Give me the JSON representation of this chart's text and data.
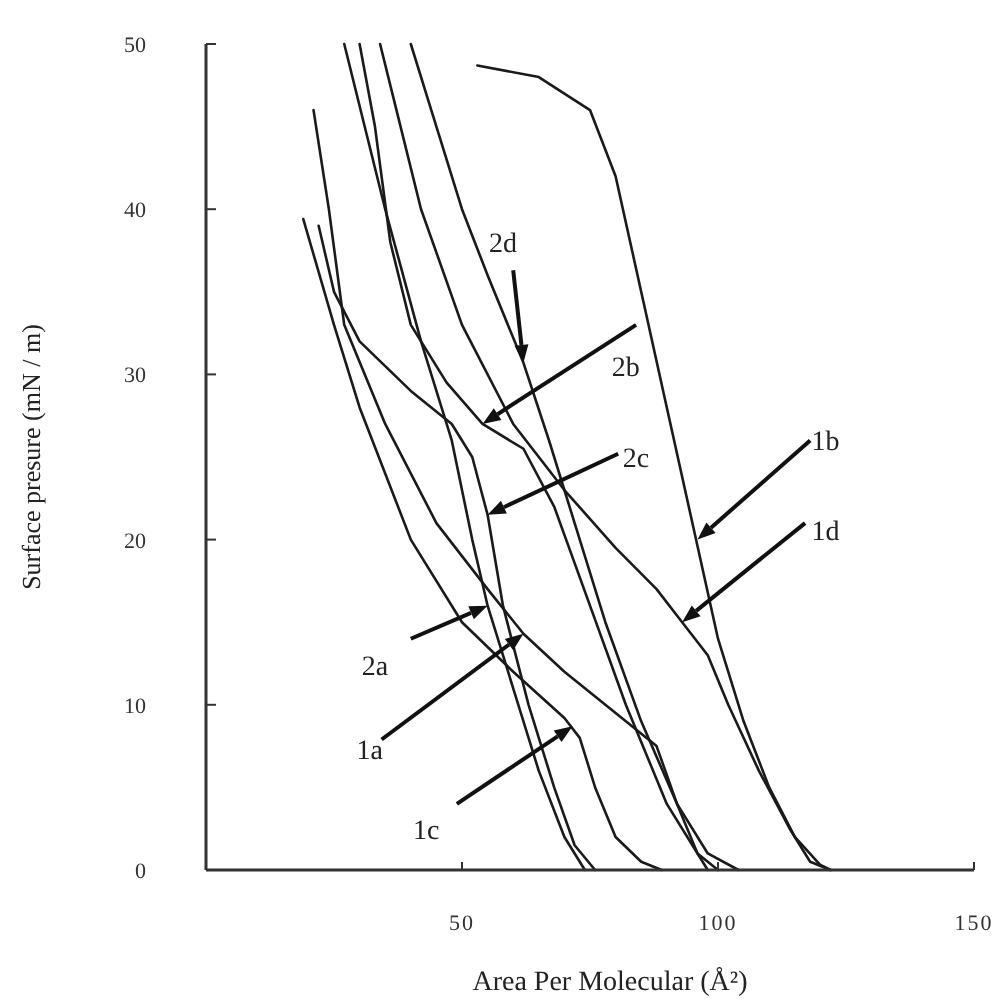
{
  "chart_data": {
    "type": "line",
    "xlabel": "Area Per Molecular (Å²)",
    "ylabel": "Surface presure (mN / m)",
    "xlim": [
      0,
      150
    ],
    "ylim": [
      0,
      50
    ],
    "xticks": [
      50,
      100,
      150
    ],
    "yticks": [
      0,
      10,
      20,
      30,
      40,
      50
    ],
    "grid": false,
    "marker": "none",
    "line_style": "solid",
    "series": [
      {
        "color": "#1a1a1a",
        "x": [
          21,
          24,
          27,
          35,
          45,
          55,
          62,
          70,
          80,
          88,
          92,
          96,
          98
        ],
        "values": [
          46,
          40,
          33,
          27,
          21,
          17,
          14.3,
          12,
          9.5,
          7.5,
          4,
          1,
          0
        ]
      },
      {
        "color": "#1a1a1a",
        "x": [
          53,
          65,
          75,
          80,
          85,
          90,
          95,
          100,
          105,
          110,
          115,
          120,
          122
        ],
        "values": [
          48.7,
          48,
          46,
          42,
          35,
          28,
          21,
          14,
          9,
          5,
          2,
          0.3,
          0
        ]
      },
      {
        "color": "#1a1a1a",
        "x": [
          19,
          25,
          30,
          40,
          50,
          60,
          70,
          73,
          76,
          80,
          85,
          89
        ],
        "values": [
          39.4,
          33,
          28,
          20,
          15,
          12,
          9.2,
          8,
          5,
          2,
          0.5,
          0
        ]
      },
      {
        "color": "#1a1a1a",
        "x": [
          34,
          38,
          42,
          50,
          60,
          70,
          80,
          88,
          93,
          98,
          102,
          108,
          114,
          118,
          122
        ],
        "values": [
          50,
          45,
          40,
          33,
          27,
          23,
          19.5,
          17,
          15,
          13,
          10,
          6,
          2.5,
          0.5,
          0
        ]
      },
      {
        "color": "#1a1a1a",
        "x": [
          27,
          35,
          42,
          48,
          52,
          55,
          60,
          65,
          70,
          74
        ],
        "values": [
          50,
          40,
          32,
          26,
          20,
          16,
          11,
          6,
          2,
          0
        ]
      },
      {
        "color": "#1a1a1a",
        "x": [
          30,
          33,
          36,
          40,
          47,
          54,
          62,
          68,
          75,
          82,
          90,
          96,
          100
        ],
        "values": [
          50,
          45,
          38,
          33,
          29.5,
          27,
          25.5,
          22,
          16,
          10,
          4,
          1,
          0
        ]
      },
      {
        "color": "#1a1a1a",
        "x": [
          22,
          25,
          30,
          40,
          48,
          52,
          55,
          58,
          63,
          68,
          72,
          76
        ],
        "values": [
          39,
          35,
          32,
          29,
          27,
          25,
          21.5,
          16,
          10,
          5,
          1.5,
          0
        ]
      },
      {
        "color": "#1a1a1a",
        "x": [
          40,
          45,
          50,
          55,
          62,
          67,
          72,
          78,
          85,
          92,
          98,
          104
        ],
        "values": [
          50,
          45,
          40,
          36,
          30.7,
          26,
          21,
          15,
          9,
          4,
          1,
          0
        ]
      }
    ],
    "annotations": [
      {
        "text": "1a",
        "x": 62,
        "y": 14.3
      },
      {
        "text": "1b",
        "x": 96,
        "y": 20
      },
      {
        "text": "1c",
        "x": 71.6,
        "y": 8.7
      },
      {
        "text": "1d",
        "x": 93,
        "y": 15
      },
      {
        "text": "2a",
        "x": 55,
        "y": 16
      },
      {
        "text": "2b",
        "x": 54,
        "y": 27
      },
      {
        "text": "2c",
        "x": 55,
        "y": 21.5
      },
      {
        "text": "2d",
        "x": 62,
        "y": 30.7
      }
    ]
  }
}
